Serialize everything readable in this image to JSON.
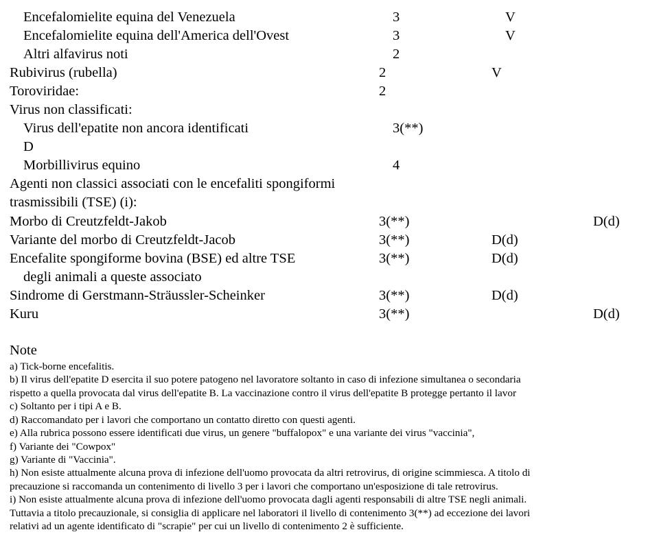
{
  "rows": [
    {
      "name": "Encefalomielite equina del Venezuela",
      "indent": 1,
      "num": "3",
      "c3": "V",
      "c4": ""
    },
    {
      "name": "Encefalomielite equina dell'America dell'Ovest",
      "indent": 1,
      "num": "3",
      "c3": "V",
      "c4": ""
    },
    {
      "name": "Altri alfavirus noti",
      "indent": 1,
      "num": "2",
      "c3": "",
      "c4": ""
    },
    {
      "name": "Rubivirus (rubella)",
      "indent": 0,
      "num": "2",
      "c3": "V",
      "c4": ""
    },
    {
      "name": "Toroviridae:",
      "indent": 0,
      "num": "2",
      "c3": "",
      "c4": ""
    },
    {
      "name": "Virus non classificati:",
      "indent": 0,
      "num": "",
      "c3": "",
      "c4": ""
    },
    {
      "name": "Virus dell'epatite non ancora identificati",
      "indent": 1,
      "cont": "D",
      "num": "3(**)",
      "c3": "",
      "c4": ""
    },
    {
      "name": "Morbillivirus equino",
      "indent": 1,
      "num": "4",
      "c3": "",
      "c4": ""
    },
    {
      "name": "Agenti non classici associati con le encefaliti spongiformi trasmissibili (TSE) (i):",
      "indent": 0,
      "num": "",
      "c3": "",
      "c4": ""
    },
    {
      "name": "Morbo di Creutzfeldt-Jakob",
      "indent": 0,
      "num": "3(**)",
      "c3": "",
      "c4": "D(d)"
    },
    {
      "name": "Variante del morbo di Creutzfeldt-Jacob",
      "indent": 0,
      "num": "3(**)",
      "c3": "D(d)",
      "c4": ""
    },
    {
      "name": "Encefalite spongiforme bovina (BSE) ed altre TSE",
      "indent": 0,
      "cont2": "degli animali a queste associato",
      "num": "3(**)",
      "c3": "D(d)",
      "c4": ""
    },
    {
      "name": "Sindrome di Gerstmann-Sträussler-Scheinker",
      "indent": 0,
      "num": "3(**)",
      "c3": "D(d)",
      "c4": ""
    },
    {
      "name": "Kuru",
      "indent": 0,
      "num": "3(**)",
      "c3": "",
      "c4": "D(d)"
    }
  ],
  "notes_heading": "Note",
  "notes": [
    "a) Tick-borne encefalitis.",
    "b) Il virus dell'epatite D esercita il suo potere patogeno nel lavoratore soltanto in caso di infezione simultanea o secondaria",
    "rispetto a quella provocata dal virus dell'epatite B. La vaccinazione contro il virus dell'epatite B protegge pertanto il lavor",
    "c) Soltanto per i tipi A e B.",
    "d) Raccomandato per i lavori che comportano un contatto diretto con questi agenti.",
    "e) Alla rubrica possono essere identificati due virus, un genere \"buffalopox\" e una variante dei virus \"vaccinia\",",
    "f) Variante dei \"Cowpox\"",
    "g) Variante di \"Vaccinia\".",
    "h) Non esiste attualmente alcuna prova di infezione dell'uomo provocata da altri retrovirus, di origine scimmiesca. A titolo di",
    "precauzione si raccomanda un contenimento di livello 3 per i lavori che comportano un'esposizione di tale retrovirus.",
    "i) Non esiste attualmente alcuna prova di infezione dell'uomo provocata dagli agenti responsabili di altre TSE negli animali.",
    "Tuttavia a titolo precauzionale, si consiglia di applicare nel laboratori il livello di contenimento 3(**) ad eccezione dei lavori",
    "relativi ad un agente identificato di \"scrapie\" per cui un livello di contenimento 2 è sufficiente."
  ]
}
